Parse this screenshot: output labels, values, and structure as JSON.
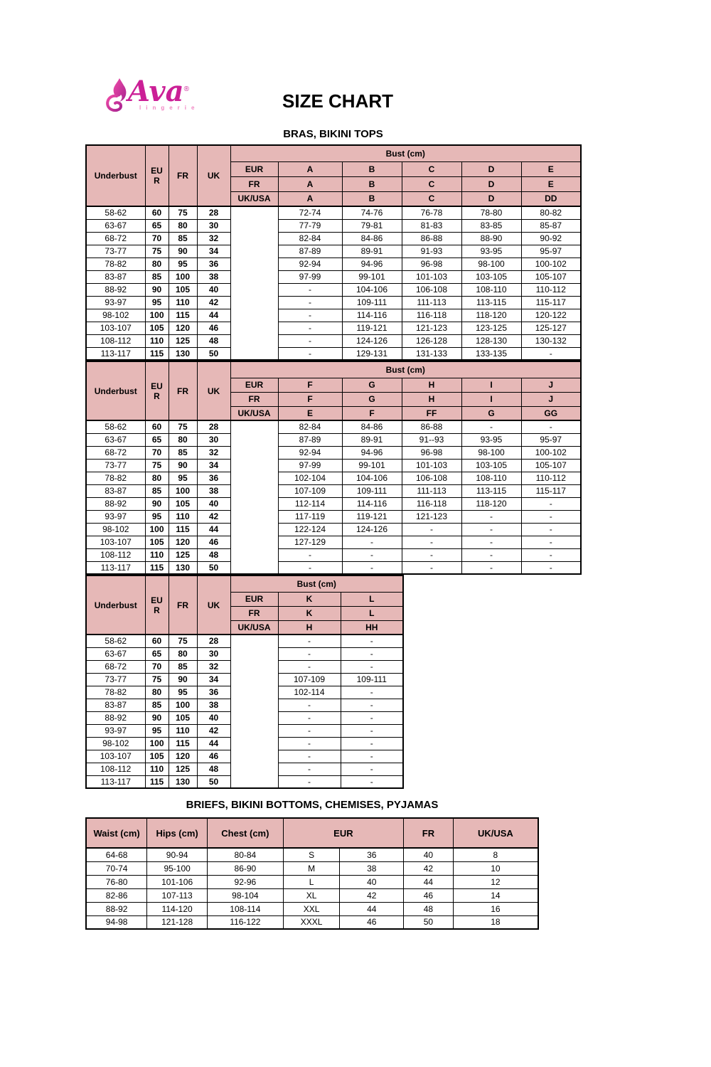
{
  "logo": {
    "brand": "Ava",
    "reg": "®",
    "sub": "lingerie"
  },
  "page": {
    "title": "SIZE CHART"
  },
  "colors": {
    "header_bg": "#e6b8b7",
    "border": "#000000",
    "logo_magenta": "#cb1f96",
    "logo_light_pink": "#f187c3"
  },
  "bras_section": {
    "title": "BRAS, BIKINI TOPS",
    "tables": [
      {
        "corner": "Underbust",
        "size_cols": [
          "EUR",
          "FR",
          "UK"
        ],
        "bust_label": "Bust (cm)",
        "cup_rows": [
          {
            "label": "EUR",
            "cups": [
              "A",
              "B",
              "C",
              "D",
              "E"
            ]
          },
          {
            "label": "FR",
            "cups": [
              "A",
              "B",
              "C",
              "D",
              "E"
            ]
          },
          {
            "label": "UK/USA",
            "cups": [
              "A",
              "B",
              "C",
              "D",
              "DD"
            ]
          }
        ],
        "rows": [
          {
            "underbust": "58-62",
            "eur": "60",
            "fr": "75",
            "uk": "28",
            "cells": [
              "72-74",
              "74-76",
              "76-78",
              "78-80",
              "80-82"
            ]
          },
          {
            "underbust": "63-67",
            "eur": "65",
            "fr": "80",
            "uk": "30",
            "cells": [
              "77-79",
              "79-81",
              "81-83",
              "83-85",
              "85-87"
            ]
          },
          {
            "underbust": "68-72",
            "eur": "70",
            "fr": "85",
            "uk": "32",
            "cells": [
              "82-84",
              "84-86",
              "86-88",
              "88-90",
              "90-92"
            ]
          },
          {
            "underbust": "73-77",
            "eur": "75",
            "fr": "90",
            "uk": "34",
            "cells": [
              "87-89",
              "89-91",
              "91-93",
              "93-95",
              "95-97"
            ]
          },
          {
            "underbust": "78-82",
            "eur": "80",
            "fr": "95",
            "uk": "36",
            "cells": [
              "92-94",
              "94-96",
              "96-98",
              "98-100",
              "100-102"
            ]
          },
          {
            "underbust": "83-87",
            "eur": "85",
            "fr": "100",
            "uk": "38",
            "cells": [
              "97-99",
              "99-101",
              "101-103",
              "103-105",
              "105-107"
            ]
          },
          {
            "underbust": "88-92",
            "eur": "90",
            "fr": "105",
            "uk": "40",
            "cells": [
              "-",
              "104-106",
              "106-108",
              "108-110",
              "110-112"
            ]
          },
          {
            "underbust": "93-97",
            "eur": "95",
            "fr": "110",
            "uk": "42",
            "cells": [
              "-",
              "109-111",
              "111-113",
              "113-115",
              "115-117"
            ]
          },
          {
            "underbust": "98-102",
            "eur": "100",
            "fr": "115",
            "uk": "44",
            "cells": [
              "-",
              "114-116",
              "116-118",
              "118-120",
              "120-122"
            ]
          },
          {
            "underbust": "103-107",
            "eur": "105",
            "fr": "120",
            "uk": "46",
            "cells": [
              "-",
              "119-121",
              "121-123",
              "123-125",
              "125-127"
            ]
          },
          {
            "underbust": "108-112",
            "eur": "110",
            "fr": "125",
            "uk": "48",
            "cells": [
              "-",
              "124-126",
              "126-128",
              "128-130",
              "130-132"
            ]
          },
          {
            "underbust": "113-117",
            "eur": "115",
            "fr": "130",
            "uk": "50",
            "cells": [
              "-",
              "129-131",
              "131-133",
              "133-135",
              "-"
            ]
          }
        ]
      },
      {
        "corner": "Underbust",
        "size_cols": [
          "EUR",
          "FR",
          "UK"
        ],
        "bust_label": "Bust (cm)",
        "cup_rows": [
          {
            "label": "EUR",
            "cups": [
              "F",
              "G",
              "H",
              "I",
              "J"
            ]
          },
          {
            "label": "FR",
            "cups": [
              "F",
              "G",
              "H",
              "I",
              "J"
            ]
          },
          {
            "label": "UK/USA",
            "cups": [
              "E",
              "F",
              "FF",
              "G",
              "GG"
            ]
          }
        ],
        "rows": [
          {
            "underbust": "58-62",
            "eur": "60",
            "fr": "75",
            "uk": "28",
            "cells": [
              "82-84",
              "84-86",
              "86-88",
              "-",
              "-"
            ]
          },
          {
            "underbust": "63-67",
            "eur": "65",
            "fr": "80",
            "uk": "30",
            "cells": [
              "87-89",
              "89-91",
              "91--93",
              "93-95",
              "95-97"
            ]
          },
          {
            "underbust": "68-72",
            "eur": "70",
            "fr": "85",
            "uk": "32",
            "cells": [
              "92-94",
              "94-96",
              "96-98",
              "98-100",
              "100-102"
            ]
          },
          {
            "underbust": "73-77",
            "eur": "75",
            "fr": "90",
            "uk": "34",
            "cells": [
              "97-99",
              "99-101",
              "101-103",
              "103-105",
              "105-107"
            ]
          },
          {
            "underbust": "78-82",
            "eur": "80",
            "fr": "95",
            "uk": "36",
            "cells": [
              "102-104",
              "104-106",
              "106-108",
              "108-110",
              "110-112"
            ]
          },
          {
            "underbust": "83-87",
            "eur": "85",
            "fr": "100",
            "uk": "38",
            "cells": [
              "107-109",
              "109-111",
              "111-113",
              "113-115",
              "115-117"
            ]
          },
          {
            "underbust": "88-92",
            "eur": "90",
            "fr": "105",
            "uk": "40",
            "cells": [
              "112-114",
              "114-116",
              "116-118",
              "118-120",
              "-"
            ]
          },
          {
            "underbust": "93-97",
            "eur": "95",
            "fr": "110",
            "uk": "42",
            "cells": [
              "117-119",
              "119-121",
              "121-123",
              "-",
              "-"
            ]
          },
          {
            "underbust": "98-102",
            "eur": "100",
            "fr": "115",
            "uk": "44",
            "cells": [
              "122-124",
              "124-126",
              "-",
              "-",
              "-"
            ]
          },
          {
            "underbust": "103-107",
            "eur": "105",
            "fr": "120",
            "uk": "46",
            "cells": [
              "127-129",
              "-",
              "-",
              "-",
              "-"
            ]
          },
          {
            "underbust": "108-112",
            "eur": "110",
            "fr": "125",
            "uk": "48",
            "cells": [
              "-",
              "-",
              "-",
              "-",
              "-"
            ]
          },
          {
            "underbust": "113-117",
            "eur": "115",
            "fr": "130",
            "uk": "50",
            "cells": [
              "-",
              "-",
              "-",
              "-",
              "-"
            ]
          }
        ]
      },
      {
        "corner": "Underbust",
        "size_cols": [
          "EUR",
          "FR",
          "UK"
        ],
        "bust_label": "Bust (cm)",
        "cup_rows": [
          {
            "label": "EUR",
            "cups": [
              "K",
              "L"
            ]
          },
          {
            "label": "FR",
            "cups": [
              "K",
              "L"
            ]
          },
          {
            "label": "UK/USA",
            "cups": [
              "H",
              "HH"
            ]
          }
        ],
        "rows": [
          {
            "underbust": "58-62",
            "eur": "60",
            "fr": "75",
            "uk": "28",
            "cells": [
              "-",
              "-"
            ]
          },
          {
            "underbust": "63-67",
            "eur": "65",
            "fr": "80",
            "uk": "30",
            "cells": [
              "-",
              "-"
            ]
          },
          {
            "underbust": "68-72",
            "eur": "70",
            "fr": "85",
            "uk": "32",
            "cells": [
              "-",
              "-"
            ]
          },
          {
            "underbust": "73-77",
            "eur": "75",
            "fr": "90",
            "uk": "34",
            "cells": [
              "107-109",
              "109-111"
            ]
          },
          {
            "underbust": "78-82",
            "eur": "80",
            "fr": "95",
            "uk": "36",
            "cells": [
              "102-114",
              "-"
            ]
          },
          {
            "underbust": "83-87",
            "eur": "85",
            "fr": "100",
            "uk": "38",
            "cells": [
              "-",
              "-"
            ]
          },
          {
            "underbust": "88-92",
            "eur": "90",
            "fr": "105",
            "uk": "40",
            "cells": [
              "-",
              "-"
            ]
          },
          {
            "underbust": "93-97",
            "eur": "95",
            "fr": "110",
            "uk": "42",
            "cells": [
              "-",
              "-"
            ]
          },
          {
            "underbust": "98-102",
            "eur": "100",
            "fr": "115",
            "uk": "44",
            "cells": [
              "-",
              "-"
            ]
          },
          {
            "underbust": "103-107",
            "eur": "105",
            "fr": "120",
            "uk": "46",
            "cells": [
              "-",
              "-"
            ]
          },
          {
            "underbust": "108-112",
            "eur": "110",
            "fr": "125",
            "uk": "48",
            "cells": [
              "-",
              "-"
            ]
          },
          {
            "underbust": "113-117",
            "eur": "115",
            "fr": "130",
            "uk": "50",
            "cells": [
              "-",
              "-"
            ]
          }
        ]
      }
    ]
  },
  "briefs_section": {
    "title": "BRIEFS, BIKINI BOTTOMS, CHEMISES, PYJAMAS",
    "headers": [
      "Waist (cm)",
      "Hips (cm)",
      "Chest (cm)",
      "EUR",
      "FR",
      "UK/USA"
    ],
    "rows": [
      {
        "cells": [
          "64-68",
          "90-94",
          "80-84",
          "S",
          "36",
          "40",
          "8"
        ]
      },
      {
        "cells": [
          "70-74",
          "95-100",
          "86-90",
          "M",
          "38",
          "42",
          "10"
        ]
      },
      {
        "cells": [
          "76-80",
          "101-106",
          "92-96",
          "L",
          "40",
          "44",
          "12"
        ]
      },
      {
        "cells": [
          "82-86",
          "107-113",
          "98-104",
          "XL",
          "42",
          "46",
          "14"
        ]
      },
      {
        "cells": [
          "88-92",
          "114-120",
          "108-114",
          "XXL",
          "44",
          "48",
          "16"
        ]
      },
      {
        "cells": [
          "94-98",
          "121-128",
          "116-122",
          "XXXL",
          "46",
          "50",
          "18"
        ]
      }
    ]
  }
}
